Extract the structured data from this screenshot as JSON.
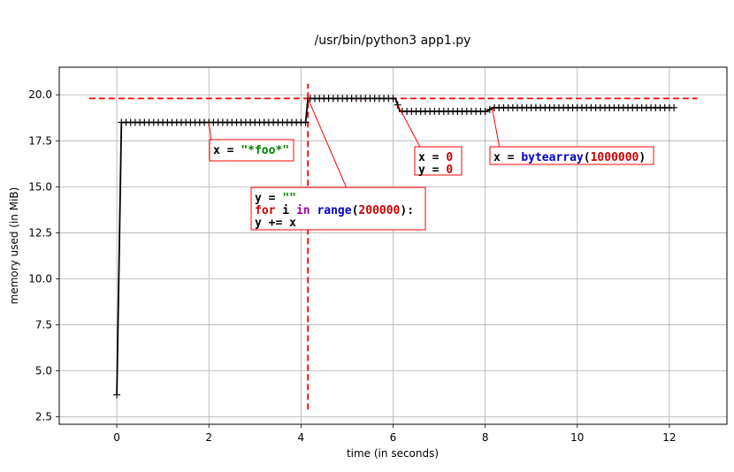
{
  "chart_data": {
    "type": "line",
    "title": "/usr/bin/python3 app1.py",
    "xlabel": "time (in seconds)",
    "ylabel": "memory used (in MiB)",
    "xlim": [
      -1.25,
      13.25
    ],
    "ylim": [
      2.1,
      21.5
    ],
    "xticks": [
      0,
      2,
      4,
      6,
      8,
      10,
      12
    ],
    "xtick_labels": [
      "0",
      "2",
      "4",
      "6",
      "8",
      "10",
      "12"
    ],
    "yticks": [
      2.5,
      5.0,
      7.5,
      10.0,
      12.5,
      15.0,
      17.5,
      20.0
    ],
    "ytick_labels": [
      "2.5",
      "5.0",
      "7.5",
      "10.0",
      "12.5",
      "15.0",
      "17.5",
      "20.0"
    ],
    "grid": true,
    "series": [
      {
        "color": "#000000",
        "marker": "+",
        "x": [
          0,
          0.1,
          4.0,
          4.1,
          4.15,
          6.05,
          6.15,
          8.05,
          8.15,
          12.05
        ],
        "y": [
          3.7,
          18.5,
          18.5,
          18.5,
          19.8,
          19.8,
          19.1,
          19.1,
          19.3,
          19.3
        ],
        "sample_interval": 0.1
      }
    ],
    "reference_lines": [
      {
        "orientation": "horizontal",
        "value": 19.8,
        "from": -0.6,
        "to": 12.6,
        "color": "#ff0000",
        "style": "dashed"
      },
      {
        "orientation": "vertical",
        "value": 4.15,
        "from": 2.9,
        "to": 20.6,
        "color": "#ff0000",
        "style": "dashed"
      }
    ],
    "annotations": [
      {
        "id": "a1",
        "point": [
          2.0,
          18.5
        ],
        "lines": [
          [
            {
              "text": "x = ",
              "color": "#000000"
            },
            {
              "text": "\"*foo*\"",
              "color": "#008000"
            }
          ]
        ]
      },
      {
        "id": "a2",
        "point": [
          4.15,
          19.8
        ],
        "lines": [
          [
            {
              "text": "y = ",
              "color": "#000000"
            },
            {
              "text": "\"\"",
              "color": "#008000"
            }
          ],
          [
            {
              "text": "for",
              "color": "#cc0000"
            },
            {
              "text": " i ",
              "color": "#000000"
            },
            {
              "text": "in",
              "color": "#aa00aa"
            },
            {
              "text": " ",
              "color": "#000000"
            },
            {
              "text": "range",
              "color": "#0000cc"
            },
            {
              "text": "(",
              "color": "#000000"
            },
            {
              "text": "200000",
              "color": "#cc0000"
            },
            {
              "text": "):",
              "color": "#000000"
            }
          ],
          [
            {
              "text": "    y += x",
              "color": "#000000"
            }
          ]
        ]
      },
      {
        "id": "a3",
        "point": [
          6.1,
          19.45
        ],
        "lines": [
          [
            {
              "text": "x = ",
              "color": "#000000"
            },
            {
              "text": "0",
              "color": "#cc0000"
            }
          ],
          [
            {
              "text": "y = ",
              "color": "#000000"
            },
            {
              "text": "0",
              "color": "#cc0000"
            }
          ]
        ]
      },
      {
        "id": "a4",
        "point": [
          8.15,
          19.3
        ],
        "lines": [
          [
            {
              "text": "x = ",
              "color": "#000000"
            },
            {
              "text": "bytearray",
              "color": "#0000cc"
            },
            {
              "text": "(",
              "color": "#000000"
            },
            {
              "text": "1000000",
              "color": "#cc0000"
            },
            {
              "text": ")",
              "color": "#000000"
            }
          ]
        ]
      }
    ]
  }
}
